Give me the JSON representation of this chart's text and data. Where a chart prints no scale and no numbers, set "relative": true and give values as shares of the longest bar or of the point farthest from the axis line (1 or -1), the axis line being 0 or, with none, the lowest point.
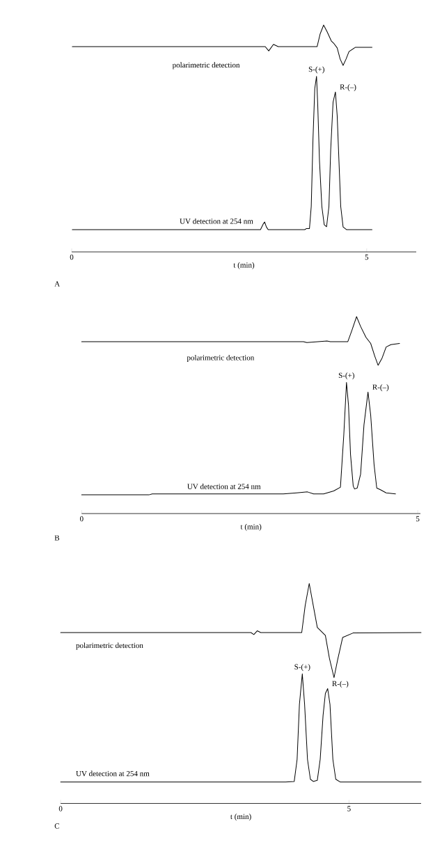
{
  "chart_data": [
    {
      "type": "line",
      "relative": true,
      "xlabel": "t (min)",
      "xlim": [
        0,
        5.84
      ],
      "xticks": [
        0,
        5
      ],
      "annotations": [
        "A",
        {
          "text": "S-(+)",
          "x": 4.15,
          "y": 0.774
        },
        {
          "text": "R-(–)",
          "x": 4.47,
          "y": 0.705
        }
      ],
      "series": [
        {
          "name": "polarimetric detection",
          "color": "#000000",
          "x": [
            0.01,
            3.28,
            3.34,
            3.42,
            3.5,
            4.16,
            4.21,
            4.27,
            4.33,
            4.4,
            4.44,
            4.5,
            4.55,
            4.6,
            4.65,
            4.7,
            4.81,
            5.09
          ],
          "values": [
            0.905,
            0.905,
            0.886,
            0.915,
            0.905,
            0.905,
            0.96,
            1.0,
            0.97,
            0.93,
            0.92,
            0.899,
            0.85,
            0.822,
            0.85,
            0.883,
            0.902,
            0.902
          ]
        },
        {
          "name": "UV detection at 254 nm",
          "color": "#000000",
          "x": [
            0.01,
            3.2,
            3.25,
            3.27,
            3.3,
            3.33,
            3.95,
            3.98,
            4.03,
            4.06,
            4.09,
            4.12,
            4.15,
            4.17,
            4.2,
            4.24,
            4.28,
            4.32,
            4.36,
            4.39,
            4.43,
            4.47,
            4.5,
            4.53,
            4.56,
            4.6,
            4.66,
            5.09
          ],
          "values": [
            0.098,
            0.098,
            0.125,
            0.132,
            0.11,
            0.098,
            0.098,
            0.103,
            0.103,
            0.2,
            0.5,
            0.72,
            0.774,
            0.65,
            0.4,
            0.2,
            0.12,
            0.111,
            0.2,
            0.45,
            0.66,
            0.705,
            0.6,
            0.4,
            0.2,
            0.11,
            0.098,
            0.098
          ]
        }
      ]
    },
    {
      "type": "line",
      "relative": true,
      "xlabel": "t (min)",
      "xlim": [
        0,
        5.04
      ],
      "xticks": [
        0,
        5
      ],
      "annotations": [
        "B",
        {
          "text": "S-(+)",
          "x": 3.94,
          "y": 0.666
        },
        {
          "text": "R-(–)",
          "x": 4.26,
          "y": 0.617
        }
      ],
      "series": [
        {
          "name": "polarimetric detection",
          "color": "#000000",
          "x": [
            0,
            3.3,
            3.35,
            3.65,
            3.7,
            3.96,
            4.02,
            4.09,
            4.15,
            4.23,
            4.3,
            4.36,
            4.41,
            4.47,
            4.53,
            4.6,
            4.73
          ],
          "values": [
            0.873,
            0.873,
            0.868,
            0.876,
            0.873,
            0.873,
            0.93,
            1.0,
            0.95,
            0.895,
            0.864,
            0.8,
            0.753,
            0.79,
            0.846,
            0.858,
            0.864
          ]
        },
        {
          "name": "UV detection at 254 nm",
          "color": "#000000",
          "x": [
            0,
            1.0,
            1.05,
            3.0,
            3.2,
            3.36,
            3.45,
            3.6,
            3.75,
            3.85,
            3.9,
            3.94,
            3.97,
            4.0,
            4.04,
            4.06,
            4.1,
            4.15,
            4.2,
            4.26,
            4.3,
            4.35,
            4.39,
            4.45,
            4.53,
            4.67
          ],
          "values": [
            0.095,
            0.095,
            0.1,
            0.1,
            0.105,
            0.11,
            0.1,
            0.1,
            0.115,
            0.134,
            0.4,
            0.666,
            0.55,
            0.3,
            0.14,
            0.125,
            0.13,
            0.2,
            0.45,
            0.617,
            0.5,
            0.25,
            0.13,
            0.12,
            0.105,
            0.1
          ]
        }
      ]
    },
    {
      "type": "line",
      "relative": true,
      "xlabel": "t (min)",
      "xlim": [
        0,
        6.25
      ],
      "xticks": [
        0,
        5
      ],
      "annotations": [
        "C",
        {
          "text": "S-(+)",
          "x": 4.19,
          "y": 0.589
        },
        {
          "text": "R-(–)",
          "x": 4.63,
          "y": 0.522
        }
      ],
      "series": [
        {
          "name": "polarimetric detection",
          "color": "#000000",
          "x": [
            0,
            3.3,
            3.35,
            3.41,
            3.47,
            4.18,
            4.24,
            4.31,
            4.38,
            4.45,
            4.49,
            4.59,
            4.66,
            4.74,
            4.8,
            4.89,
            5.07,
            6.25
          ],
          "values": [
            0.777,
            0.777,
            0.768,
            0.785,
            0.777,
            0.777,
            0.9,
            1.0,
            0.9,
            0.8,
            0.79,
            0.764,
            0.66,
            0.572,
            0.65,
            0.755,
            0.775,
            0.777
          ]
        },
        {
          "name": "UV detection at 254 nm",
          "color": "#000000",
          "x": [
            0,
            3.9,
            4.05,
            4.1,
            4.14,
            4.19,
            4.23,
            4.28,
            4.33,
            4.38,
            4.45,
            4.5,
            4.55,
            4.59,
            4.63,
            4.67,
            4.72,
            4.77,
            4.85,
            6.25
          ],
          "values": [
            0.097,
            0.097,
            0.1,
            0.2,
            0.45,
            0.589,
            0.45,
            0.2,
            0.11,
            0.1,
            0.105,
            0.2,
            0.4,
            0.5,
            0.522,
            0.45,
            0.2,
            0.11,
            0.097,
            0.097
          ]
        }
      ]
    }
  ]
}
